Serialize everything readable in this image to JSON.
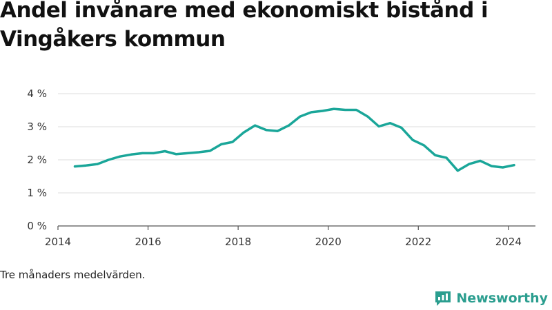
{
  "chart_data": {
    "type": "line",
    "title": "Andel invånare med ekonomiskt bistånd i Vingåkers kommun",
    "caption": "Tre månaders medelvärden.",
    "xlabel": "",
    "ylabel": "",
    "ylim": [
      0,
      4
    ],
    "xlim": [
      2014,
      2024.6
    ],
    "yticks": [
      0,
      1,
      2,
      3,
      4
    ],
    "ytick_labels": [
      "0 %",
      "1 %",
      "2 %",
      "3 %",
      "4 %"
    ],
    "xticks": [
      2014,
      2016,
      2018,
      2020,
      2022,
      2024
    ],
    "xtick_labels": [
      "2014",
      "2016",
      "2018",
      "2020",
      "2022",
      "2024"
    ],
    "grid": true,
    "line_color": "#1aa699",
    "series": [
      {
        "x": [
          2014.375,
          2014.625,
          2014.875,
          2015.125,
          2015.375,
          2015.625,
          2015.875,
          2016.125,
          2016.375,
          2016.625,
          2016.875,
          2017.125,
          2017.375,
          2017.625,
          2017.875,
          2018.125,
          2018.375,
          2018.625,
          2018.875,
          2019.125,
          2019.375,
          2019.625,
          2019.875,
          2020.125,
          2020.375,
          2020.625,
          2020.875,
          2021.125,
          2021.375,
          2021.625,
          2021.875,
          2022.125,
          2022.375,
          2022.625,
          2022.875,
          2023.125,
          2023.375,
          2023.625,
          2023.875,
          2024.125
        ],
        "y": [
          1.8,
          1.83,
          1.87,
          2.0,
          2.1,
          2.16,
          2.2,
          2.2,
          2.26,
          2.17,
          2.2,
          2.23,
          2.27,
          2.47,
          2.54,
          2.83,
          3.04,
          2.9,
          2.87,
          3.04,
          3.31,
          3.44,
          3.48,
          3.54,
          3.51,
          3.51,
          3.31,
          3.01,
          3.11,
          2.97,
          2.6,
          2.44,
          2.14,
          2.06,
          1.67,
          1.87,
          1.97,
          1.81,
          1.77,
          1.84
        ]
      }
    ]
  },
  "brand": {
    "name": "Newsworthy",
    "icon": "newsworthy-logo-icon",
    "color": "#2b9e8f"
  }
}
